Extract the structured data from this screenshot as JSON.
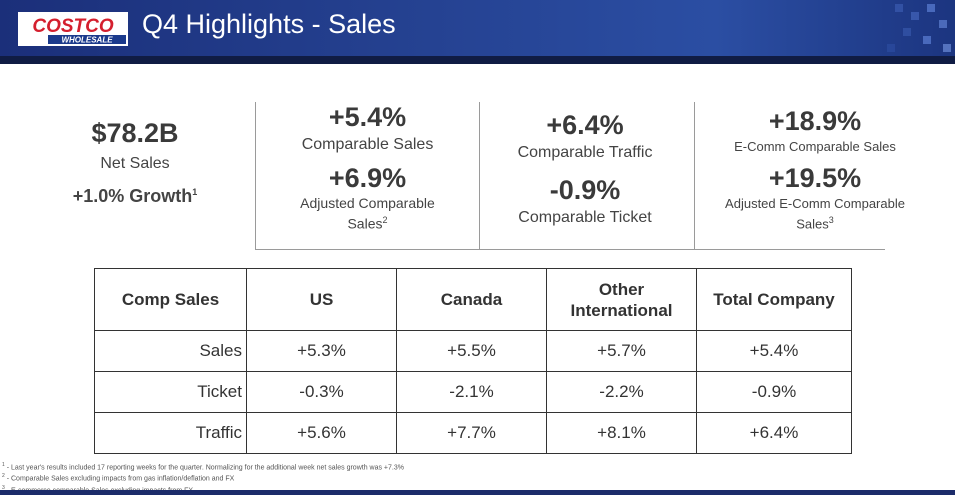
{
  "header": {
    "logo_text": "COSTCO",
    "logo_sub": "WHOLESALE",
    "title": "Q4 Highlights - Sales"
  },
  "kpis": {
    "net_sales_value": "$78.2B",
    "net_sales_label": "Net Sales",
    "growth": "+1.0% Growth",
    "growth_note": "1",
    "comp_sales_value": "+5.4%",
    "comp_sales_label": "Comparable Sales",
    "adj_comp_value": "+6.9%",
    "adj_comp_label_1": "Adjusted Comparable",
    "adj_comp_label_2": "Sales",
    "adj_comp_note": "2",
    "traffic_value": "+6.4%",
    "traffic_label": "Comparable Traffic",
    "ticket_value": "-0.9%",
    "ticket_label": "Comparable Ticket",
    "ecomm_value": "+18.9%",
    "ecomm_label": "E-Comm Comparable Sales",
    "adj_ecomm_value": "+19.5%",
    "adj_ecomm_label_1": "Adjusted E-Comm Comparable",
    "adj_ecomm_label_2": "Sales",
    "adj_ecomm_note": "3"
  },
  "table": {
    "headers": [
      "Comp Sales",
      "US",
      "Canada",
      "Other\nInternational",
      "Total Company"
    ],
    "rows": [
      {
        "label": "Sales",
        "values": [
          "+5.3%",
          "+5.5%",
          "+5.7%",
          "+5.4%"
        ]
      },
      {
        "label": "Ticket",
        "values": [
          "-0.3%",
          "-2.1%",
          "-2.2%",
          "-0.9%"
        ]
      },
      {
        "label": "Traffic",
        "values": [
          "+5.6%",
          "+7.7%",
          "+8.1%",
          "+6.4%"
        ]
      }
    ]
  },
  "footnotes": [
    {
      "mark": "1",
      "text": " - Last year's results included 17 reporting weeks for the quarter. Normalizing for the additional week net sales growth was +7.3%"
    },
    {
      "mark": "2",
      "text": " - Comparable Sales excluding impacts from gas inflation/deflation and FX"
    },
    {
      "mark": "3",
      "text": " - E-commerce comparable Sales excluding impacts from FX"
    }
  ],
  "colors": {
    "header_blue": "#24408f",
    "logo_red": "#d41f2e",
    "text_dark": "#3a3a3a"
  }
}
